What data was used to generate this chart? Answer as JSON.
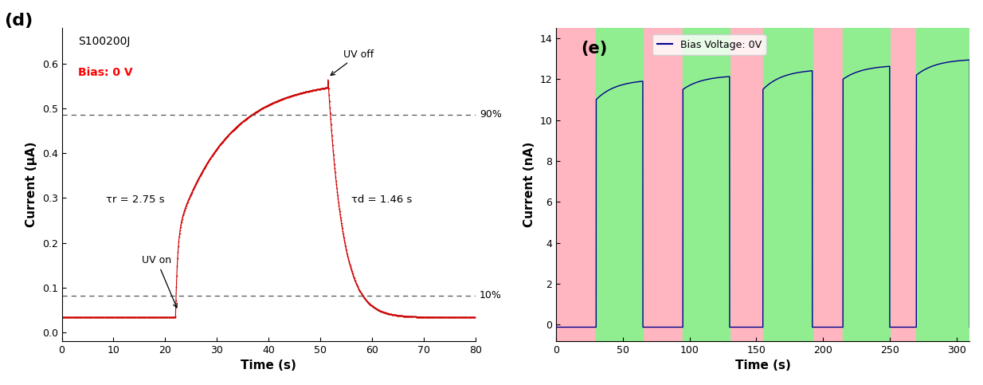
{
  "panel_d": {
    "title_label": "(d)",
    "sample_label": "S100200J",
    "bias_label": "Bias: 0 V",
    "bias_color": "#ff0000",
    "line_color": "#cc0000",
    "xlabel": "Time (s)",
    "ylabel": "Current (μA)",
    "xlim": [
      0,
      80
    ],
    "ylim": [
      -0.02,
      0.68
    ],
    "yticks": [
      0.0,
      0.1,
      0.2,
      0.3,
      0.4,
      0.5,
      0.6
    ],
    "xticks": [
      0,
      10,
      20,
      30,
      40,
      50,
      60,
      70,
      80
    ],
    "dark_current": 0.033,
    "uv_on_time": 22.0,
    "uv_off_time": 51.5,
    "peak_current": 0.565,
    "tau_r": 2.75,
    "tau_d": 1.46,
    "pct_90": 0.487,
    "pct_10": 0.082,
    "uv_on_label": "UV on",
    "uv_off_label": "UV off",
    "tau_r_label": "τr = 2.75 s",
    "tau_d_label": "τd = 1.46 s",
    "pct_90_label": "90%",
    "pct_10_label": "10%"
  },
  "panel_e": {
    "title_label": "(e)",
    "legend_label": "Bias Voltage: 0V",
    "line_color": "#00008B",
    "xlabel": "Time (s)",
    "ylabel": "Current (nA)",
    "xlim": [
      0,
      310
    ],
    "ylim": [
      -0.8,
      14.5
    ],
    "yticks": [
      0,
      2,
      4,
      6,
      8,
      10,
      12,
      14
    ],
    "xticks": [
      0,
      50,
      100,
      150,
      200,
      250,
      300
    ],
    "pink_color": "#FFB6C1",
    "green_color": "#90EE90",
    "dark_current": -0.12,
    "cycles": [
      {
        "on_start": 30,
        "on_end": 65,
        "peak": 12.0,
        "base": 11.0
      },
      {
        "on_start": 95,
        "on_end": 130,
        "peak": 12.2,
        "base": 11.5
      },
      {
        "on_start": 155,
        "on_end": 192,
        "peak": 12.5,
        "base": 11.5
      },
      {
        "on_start": 215,
        "on_end": 250,
        "peak": 12.7,
        "base": 12.0
      },
      {
        "on_start": 270,
        "on_end": 310,
        "peak": 13.0,
        "base": 12.2
      }
    ]
  }
}
